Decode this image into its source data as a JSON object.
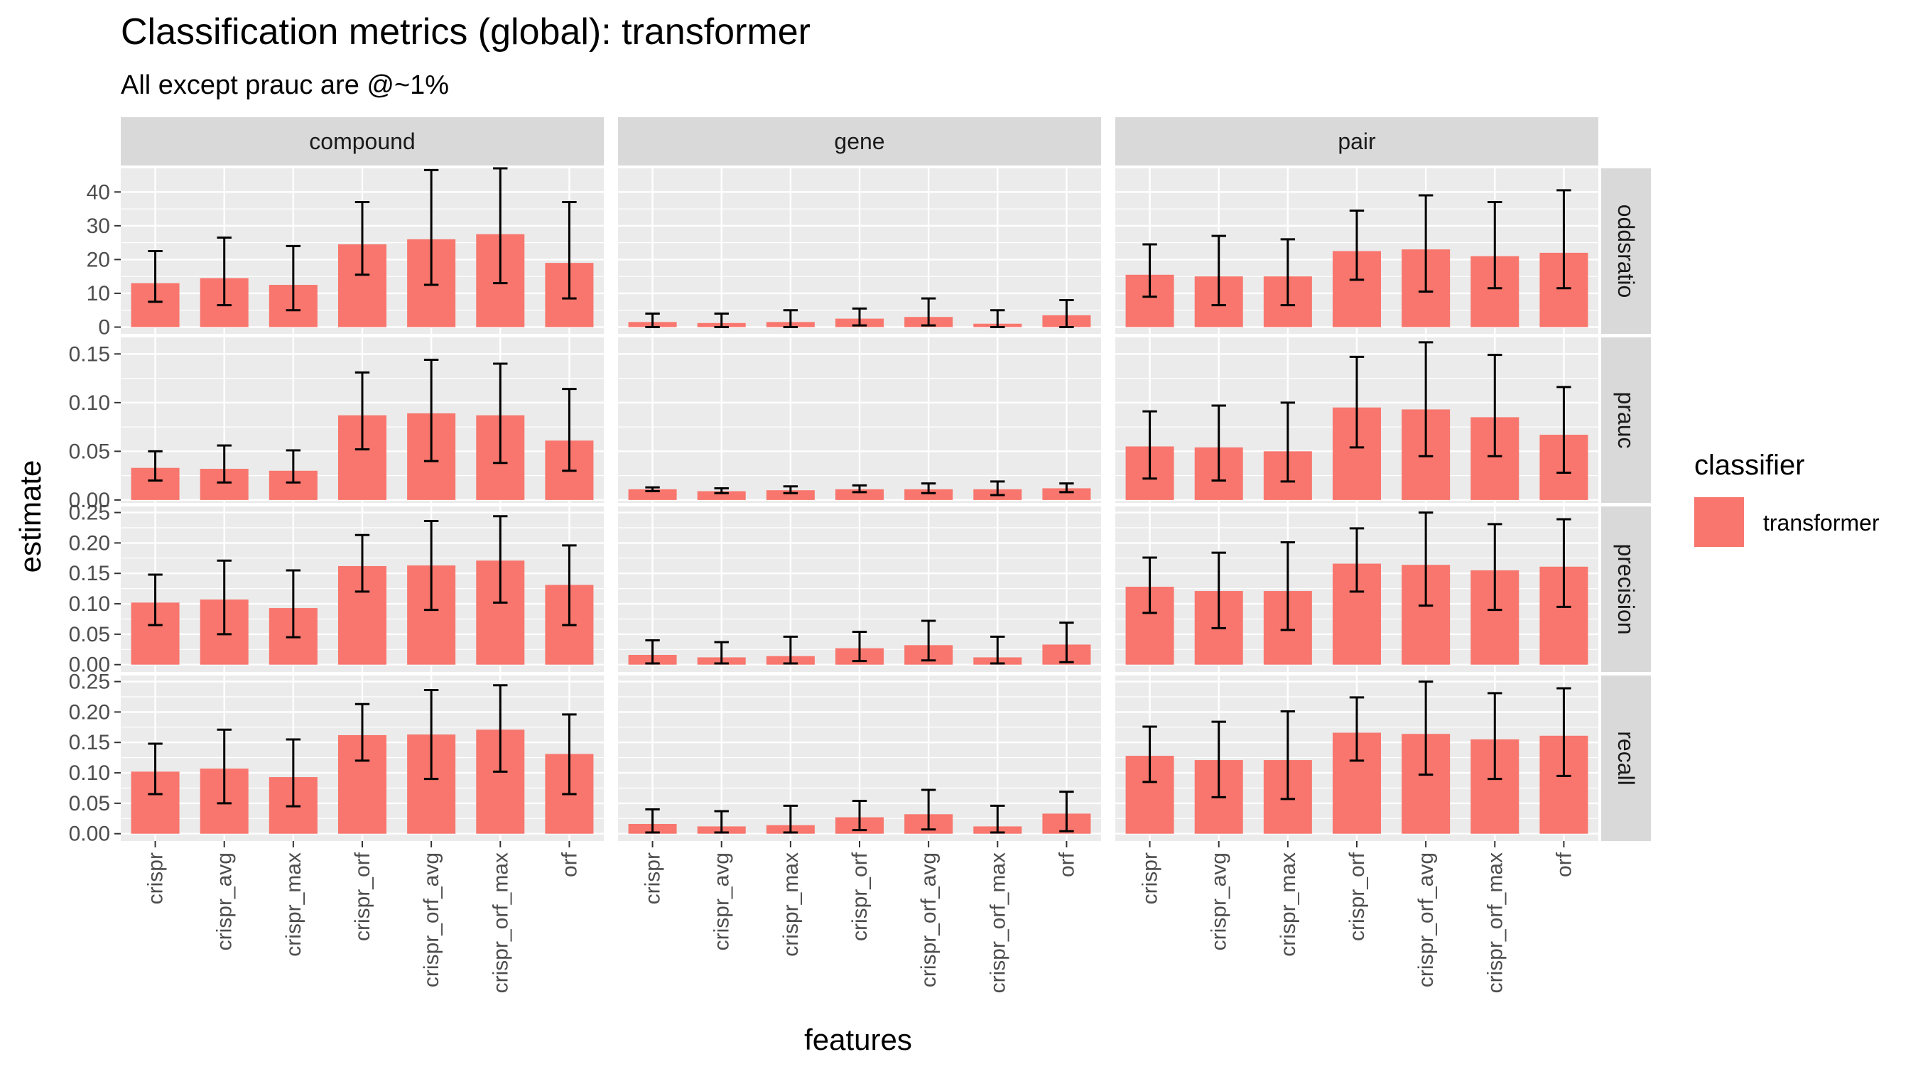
{
  "chart_data": {
    "type": "bar",
    "title": "Classification metrics (global): transformer",
    "subtitle": "All except prauc are @~1%",
    "xlabel": "features",
    "ylabel": "estimate",
    "legend": {
      "title": "classifier",
      "entries": [
        "transformer"
      ],
      "placement": "right"
    },
    "colors": {
      "bar": "#F8766D",
      "panel": "#EBEBEB",
      "strip": "#D9D9D9",
      "grid": "#FFFFFF",
      "errorbar": "#000000"
    },
    "categories": [
      "crispr",
      "crispr_avg",
      "crispr_max",
      "crispr_orf",
      "crispr_orf_avg",
      "crispr_orf_max",
      "orf"
    ],
    "columns": [
      "compound",
      "gene",
      "pair"
    ],
    "rows": [
      {
        "name": "oddsratio",
        "ylim": [
          -2,
          47
        ],
        "ticks": [
          0,
          10,
          20,
          30,
          40
        ],
        "tick_labels": [
          "0",
          "10",
          "20",
          "30",
          "40"
        ]
      },
      {
        "name": "prauc",
        "ylim": [
          -0.003,
          0.167
        ],
        "ticks": [
          0,
          0.05,
          0.1,
          0.15
        ],
        "tick_labels": [
          "0.00",
          "0.05",
          "0.10",
          "0.15"
        ]
      },
      {
        "name": "precision",
        "ylim": [
          -0.012,
          0.26
        ],
        "ticks": [
          0,
          0.05,
          0.1,
          0.15,
          0.2,
          0.25
        ],
        "tick_labels": [
          "0.00",
          "0.05",
          "0.10",
          "0.15",
          "0.20",
          "0.25"
        ]
      },
      {
        "name": "recall",
        "ylim": [
          -0.012,
          0.26
        ],
        "ticks": [
          0,
          0.05,
          0.1,
          0.15,
          0.2,
          0.25
        ],
        "tick_labels": [
          "0.00",
          "0.05",
          "0.10",
          "0.15",
          "0.20",
          "0.25"
        ]
      }
    ],
    "series": [
      {
        "name": "transformer",
        "panels": {
          "oddsratio": {
            "compound": {
              "values": [
                13.0,
                14.5,
                12.5,
                24.5,
                26.0,
                27.5,
                19.0
              ],
              "lower": [
                7.5,
                6.5,
                5.0,
                15.5,
                12.5,
                13.0,
                8.5
              ],
              "upper": [
                22.5,
                26.5,
                24.0,
                37.0,
                46.5,
                47.0,
                37.0
              ]
            },
            "gene": {
              "values": [
                1.5,
                1.2,
                1.5,
                2.5,
                3.0,
                1.0,
                3.5
              ],
              "lower": [
                0.0,
                0.0,
                0.0,
                0.5,
                0.5,
                0.0,
                0.0
              ],
              "upper": [
                4.0,
                4.0,
                5.0,
                5.5,
                8.5,
                5.0,
                8.0
              ]
            },
            "pair": {
              "values": [
                15.5,
                15.0,
                15.0,
                22.5,
                23.0,
                21.0,
                22.0
              ],
              "lower": [
                9.0,
                6.5,
                6.5,
                14.0,
                10.5,
                11.5,
                11.5
              ],
              "upper": [
                24.5,
                27.0,
                26.0,
                34.5,
                39.0,
                37.0,
                40.5
              ]
            }
          },
          "prauc": {
            "compound": {
              "values": [
                0.033,
                0.032,
                0.03,
                0.087,
                0.089,
                0.087,
                0.061
              ],
              "lower": [
                0.02,
                0.018,
                0.018,
                0.052,
                0.04,
                0.038,
                0.03
              ],
              "upper": [
                0.05,
                0.056,
                0.051,
                0.131,
                0.144,
                0.14,
                0.114
              ]
            },
            "gene": {
              "values": [
                0.011,
                0.009,
                0.01,
                0.011,
                0.011,
                0.011,
                0.012
              ],
              "lower": [
                0.009,
                0.007,
                0.007,
                0.008,
                0.007,
                0.005,
                0.008
              ],
              "upper": [
                0.013,
                0.012,
                0.014,
                0.015,
                0.017,
                0.019,
                0.017
              ]
            },
            "pair": {
              "values": [
                0.055,
                0.054,
                0.05,
                0.095,
                0.093,
                0.085,
                0.067
              ],
              "lower": [
                0.022,
                0.02,
                0.019,
                0.054,
                0.045,
                0.045,
                0.028
              ],
              "upper": [
                0.091,
                0.097,
                0.1,
                0.147,
                0.162,
                0.149,
                0.116
              ]
            }
          },
          "precision": {
            "compound": {
              "values": [
                0.102,
                0.107,
                0.093,
                0.162,
                0.163,
                0.171,
                0.131
              ],
              "lower": [
                0.065,
                0.05,
                0.045,
                0.12,
                0.09,
                0.102,
                0.065
              ],
              "upper": [
                0.148,
                0.171,
                0.155,
                0.213,
                0.236,
                0.244,
                0.196
              ]
            },
            "gene": {
              "values": [
                0.016,
                0.012,
                0.014,
                0.027,
                0.032,
                0.012,
                0.033
              ],
              "lower": [
                0.002,
                0.002,
                0.002,
                0.006,
                0.007,
                0.002,
                0.004
              ],
              "upper": [
                0.04,
                0.037,
                0.046,
                0.054,
                0.072,
                0.046,
                0.069
              ]
            },
            "pair": {
              "values": [
                0.128,
                0.121,
                0.121,
                0.166,
                0.164,
                0.155,
                0.161
              ],
              "lower": [
                0.085,
                0.06,
                0.057,
                0.12,
                0.097,
                0.09,
                0.095
              ],
              "upper": [
                0.176,
                0.184,
                0.201,
                0.224,
                0.25,
                0.231,
                0.239
              ]
            }
          },
          "recall": {
            "compound": {
              "values": [
                0.102,
                0.107,
                0.093,
                0.162,
                0.163,
                0.171,
                0.131
              ],
              "lower": [
                0.065,
                0.05,
                0.045,
                0.12,
                0.09,
                0.102,
                0.065
              ],
              "upper": [
                0.148,
                0.171,
                0.155,
                0.213,
                0.236,
                0.244,
                0.196
              ]
            },
            "gene": {
              "values": [
                0.016,
                0.012,
                0.014,
                0.027,
                0.032,
                0.012,
                0.033
              ],
              "lower": [
                0.002,
                0.002,
                0.002,
                0.006,
                0.007,
                0.002,
                0.004
              ],
              "upper": [
                0.04,
                0.037,
                0.046,
                0.054,
                0.072,
                0.046,
                0.069
              ]
            },
            "pair": {
              "values": [
                0.128,
                0.121,
                0.121,
                0.166,
                0.164,
                0.155,
                0.161
              ],
              "lower": [
                0.085,
                0.06,
                0.057,
                0.12,
                0.097,
                0.09,
                0.095
              ],
              "upper": [
                0.176,
                0.184,
                0.201,
                0.224,
                0.25,
                0.231,
                0.239
              ]
            }
          }
        }
      }
    ]
  }
}
